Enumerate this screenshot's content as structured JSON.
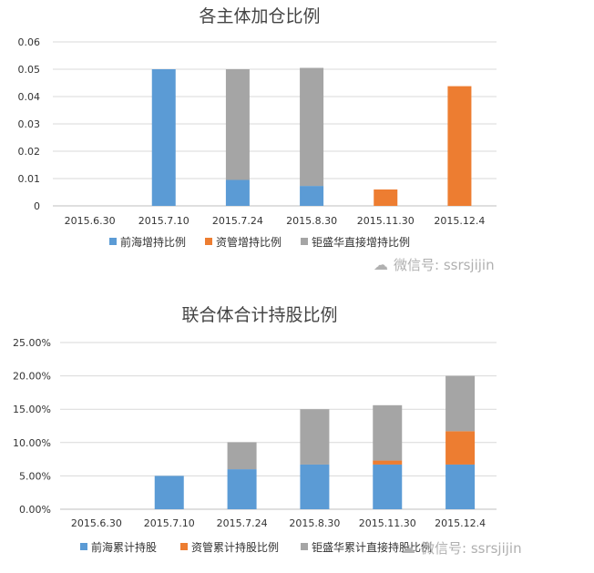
{
  "watermark": {
    "text": "微信号: ssrsjijin"
  },
  "chart_data": [
    {
      "type": "bar",
      "stacked": true,
      "title": "各主体加仓比例",
      "categories": [
        "2015.6.30",
        "2015.7.10",
        "2015.7.24",
        "2015.8.30",
        "2015.11.30",
        "2015.12.4"
      ],
      "yticks": [
        "0",
        "0.01",
        "0.02",
        "0.03",
        "0.04",
        "0.05",
        "0.06"
      ],
      "ylim": [
        0,
        0.06
      ],
      "grid": true,
      "legend_position": "bottom",
      "series": [
        {
          "name": "前海增持比例",
          "color": "#5b9bd5",
          "values": [
            0,
            0.05,
            0.0095,
            0.0073,
            0,
            0
          ]
        },
        {
          "name": "资管增持比例",
          "color": "#ed7d31",
          "values": [
            0,
            0,
            0,
            0,
            0.006,
            0.0438
          ]
        },
        {
          "name": "钜盛华直接增持比例",
          "color": "#a5a5a5",
          "values": [
            0,
            0,
            0.0405,
            0.0432,
            0,
            0
          ]
        }
      ]
    },
    {
      "type": "bar",
      "stacked": true,
      "title": "联合体合计持股比例",
      "categories": [
        "2015.6.30",
        "2015.7.10",
        "2015.7.24",
        "2015.8.30",
        "2015.11.30",
        "2015.12.4"
      ],
      "yticks": [
        "0.00%",
        "5.00%",
        "10.00%",
        "15.00%",
        "20.00%",
        "25.00%"
      ],
      "ylim": [
        0,
        25
      ],
      "grid": true,
      "legend_position": "bottom",
      "series": [
        {
          "name": "前海累计持股",
          "color": "#5b9bd5",
          "values": [
            0,
            5.0,
            6.0,
            6.7,
            6.7,
            6.7
          ]
        },
        {
          "name": "资管累计持股比例",
          "color": "#ed7d31",
          "values": [
            0,
            0,
            0,
            0,
            0.6,
            5.0
          ]
        },
        {
          "name": "钜盛华累计直接持股比例",
          "color": "#a5a5a5",
          "values": [
            0,
            0,
            4.05,
            8.3,
            8.3,
            8.3
          ]
        }
      ]
    }
  ]
}
